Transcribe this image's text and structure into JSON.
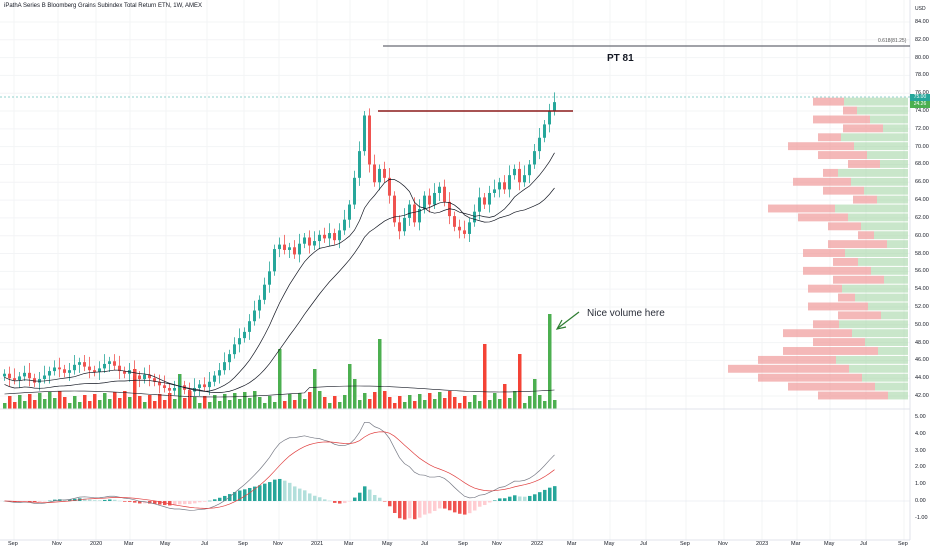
{
  "header": {
    "title": "iPathA Series B Bloomberg Grains Subindex Total Return ETN, 1W, AMEX"
  },
  "annotations": {
    "pt_label": "PT 81",
    "note": "Nice volume here",
    "fib_label": "0.618(81.25)"
  },
  "price_axis": {
    "currency": "USD",
    "labels": [
      "84.00",
      "82.00",
      "80.00",
      "78.00",
      "76.00",
      "74.00",
      "72.00",
      "70.00",
      "68.00",
      "66.00",
      "64.00",
      "62.00",
      "60.00",
      "58.00",
      "56.00",
      "54.00",
      "52.00",
      "50.00",
      "48.00",
      "46.00",
      "44.00",
      "42.00"
    ],
    "last_price": "75.00",
    "last_tag2": "24.26"
  },
  "indicator_axis": {
    "labels": [
      "5.00",
      "4.00",
      "3.00",
      "2.00",
      "1.00",
      "0.00",
      "-1.00"
    ]
  },
  "time_axis": {
    "labels": [
      "Sep",
      "Nov",
      "2020",
      "Mar",
      "May",
      "Jul",
      "Sep",
      "Nov",
      "2021",
      "Mar",
      "May",
      "Jul",
      "Sep",
      "Nov",
      "2022",
      "Mar",
      "May",
      "Jul",
      "Sep",
      "Nov",
      "2023",
      "Mar",
      "May",
      "Jul",
      "Sep"
    ]
  },
  "colors": {
    "up": "#26a69a",
    "down": "#ef5350",
    "vol_up": "#4caf50",
    "vol_down": "#f44336",
    "resistance": "#8b1a1a",
    "target": "#434651",
    "macd": "#787b86",
    "signal": "#e04040"
  },
  "chart_data": {
    "type": "candlestick",
    "ylim": [
      41,
      86
    ],
    "price_path": [
      44.5,
      44.0,
      43.8,
      44.2,
      44.6,
      44.0,
      43.5,
      43.9,
      44.3,
      44.8,
      45.2,
      45.0,
      44.6,
      44.9,
      45.5,
      45.8,
      45.3,
      44.9,
      44.7,
      45.1,
      45.6,
      45.9,
      45.4,
      44.8,
      44.5,
      44.9,
      44.3,
      43.9,
      44.4,
      44.0,
      43.6,
      43.2,
      42.9,
      42.6,
      42.9,
      43.2,
      42.7,
      42.5,
      42.9,
      43.3,
      43.0,
      43.6,
      44.3,
      44.9,
      45.8,
      46.7,
      47.8,
      48.5,
      49.2,
      50.4,
      51.6,
      52.8,
      54.5,
      56.0,
      58.5,
      59.0,
      58.4,
      58.7,
      57.9,
      59.1,
      59.8,
      58.9,
      59.4,
      60.1,
      59.7,
      60.3,
      59.5,
      60.6,
      61.8,
      63.5,
      66.5,
      69.5,
      73.5,
      68.0,
      66.0,
      67.5,
      66.5,
      64.5,
      61.5,
      60.5,
      62.0,
      63.5,
      61.5,
      63.0,
      64.5,
      63.5,
      64.8,
      65.5,
      63.8,
      62.2,
      61.0,
      60.6,
      60.2,
      61.5,
      62.7,
      64.3,
      63.5,
      64.8,
      65.2,
      66.0,
      65.2,
      66.8,
      67.5,
      66.0,
      66.8,
      68.0,
      69.5,
      71.0,
      72.5,
      74.0,
      75.0
    ]
  }
}
